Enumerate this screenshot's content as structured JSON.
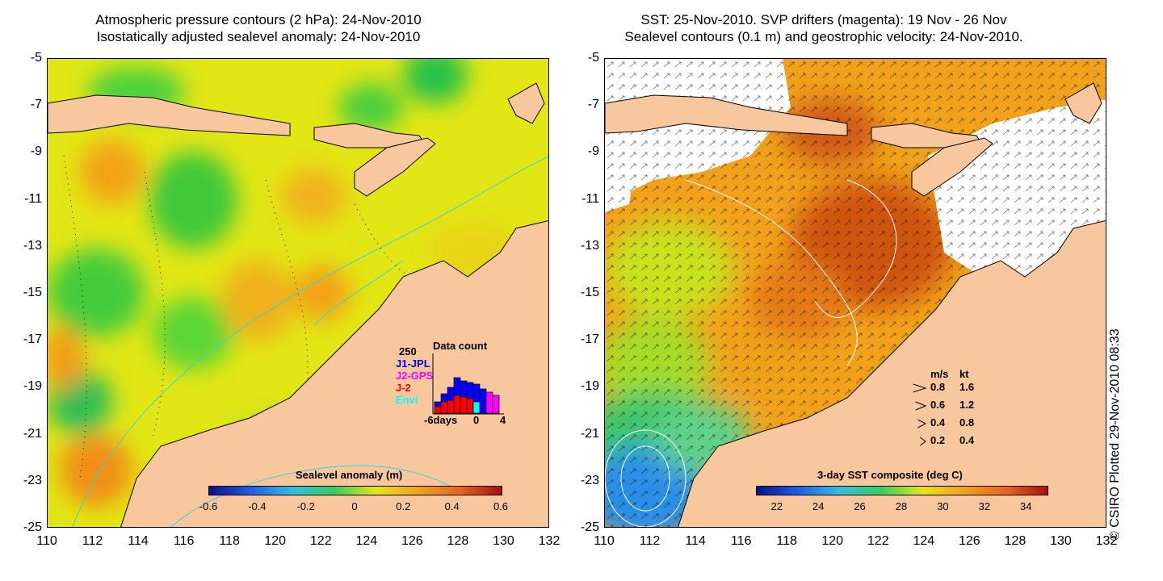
{
  "left_panel": {
    "title_line1": "Atmospheric pressure contours (2 hPa): 24-Nov-2010",
    "title_line2": "Isostatically adjusted sealevel anomaly: 24-Nov-2010",
    "colorbar": {
      "label": "Sealevel anomaly (m)",
      "ticks": [
        "-0.6",
        "-0.4",
        "-0.2",
        "0",
        "0.2",
        "0.4",
        "0.6"
      ],
      "range": [
        -0.6,
        0.6
      ]
    },
    "data_count": {
      "title": "Data count",
      "max_label": "250",
      "x_start": "-6days",
      "x_mid": "0",
      "x_end": "4",
      "series": [
        {
          "name": "J1-JPL",
          "color": "#0000ff"
        },
        {
          "name": "J2-GPS",
          "color": "#ff00ff"
        },
        {
          "name": "J-2",
          "color": "#ff0000"
        },
        {
          "name": "Envi",
          "color": "#00ffff"
        }
      ]
    }
  },
  "right_panel": {
    "title_line1": "SST: 25-Nov-2010. SVP drifters (magenta): 19 Nov - 26 Nov",
    "title_line2": "Sealevel contours (0.1 m) and geostrophic velocity: 24-Nov-2010.",
    "colorbar": {
      "label": "3-day SST composite (deg C)",
      "ticks": [
        "22",
        "24",
        "26",
        "28",
        "30",
        "32",
        "34"
      ],
      "range": [
        21,
        35
      ]
    },
    "velocity_legend": {
      "header_ms": "m/s",
      "header_kt": "kt",
      "rows": [
        {
          "ms": "0.8",
          "kt": "1.6"
        },
        {
          "ms": "0.6",
          "kt": "1.2"
        },
        {
          "ms": "0.4",
          "kt": "0.8"
        },
        {
          "ms": "0.2",
          "kt": "0.4"
        }
      ]
    }
  },
  "axes": {
    "lat_ticks": [
      "-5",
      "-7",
      "-9",
      "-11",
      "-13",
      "-15",
      "-17",
      "-19",
      "-21",
      "-23",
      "-25"
    ],
    "lon_ticks": [
      "110",
      "112",
      "114",
      "116",
      "118",
      "120",
      "122",
      "124",
      "126",
      "128",
      "130",
      "132"
    ]
  },
  "credit": "© CSIRO Plotted 29-Nov-2010 08:33",
  "colors": {
    "land": "#f9c79d",
    "sea_base": "#e6ea12",
    "coast": "#000000",
    "contour": "#33d6d6",
    "no_data": "#ffffff"
  }
}
